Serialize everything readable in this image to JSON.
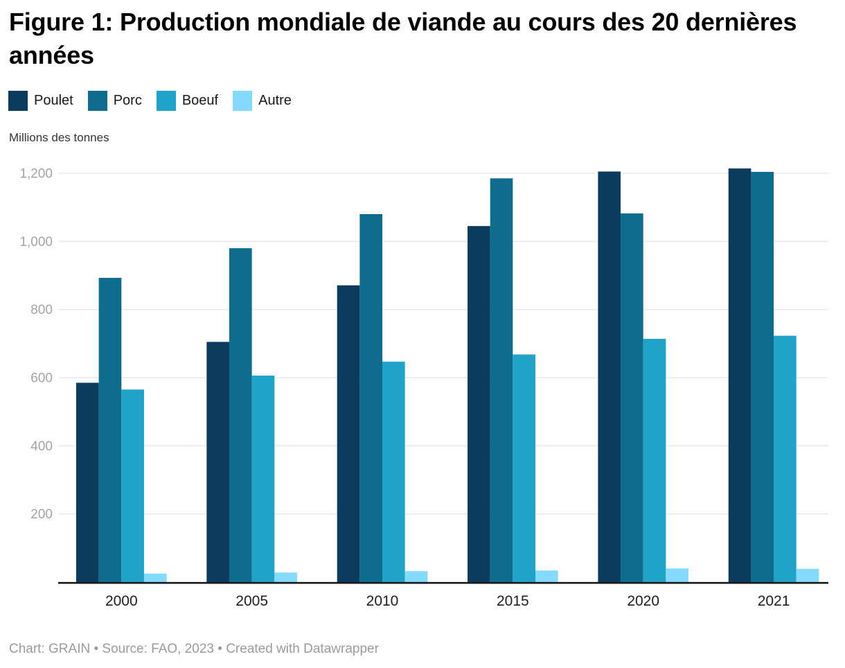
{
  "header": {
    "title": "Figure 1: Production mondiale de viande au cours des 20 dernières années"
  },
  "axis_unit_label": "Millions des tonnes",
  "footer": {
    "text": "Chart: GRAIN • Source: FAO, 2023 • Created with Datawrapper"
  },
  "chart_data": {
    "type": "bar",
    "title": "Figure 1: Production mondiale de viande au cours des 20 dernières années",
    "ylabel": "Millions des tonnes",
    "xlabel": "",
    "categories": [
      "2000",
      "2005",
      "2010",
      "2015",
      "2020",
      "2021"
    ],
    "series": [
      {
        "name": "Poulet",
        "color": "#0b3c5d",
        "values": [
          585,
          705,
          871,
          1045,
          1205,
          1214
        ]
      },
      {
        "name": "Porc",
        "color": "#0e6d8e",
        "values": [
          893,
          980,
          1080,
          1185,
          1082,
          1204
        ]
      },
      {
        "name": "Boeuf",
        "color": "#1fa3c9",
        "values": [
          565,
          606,
          647,
          668,
          714,
          723
        ]
      },
      {
        "name": "Autre",
        "color": "#83dafb",
        "values": [
          25,
          28,
          32,
          34,
          40,
          39
        ]
      }
    ],
    "ylim": [
      0,
      1200
    ],
    "yticks": [
      {
        "value": 200,
        "label": "200"
      },
      {
        "value": 400,
        "label": "400"
      },
      {
        "value": 600,
        "label": "600"
      },
      {
        "value": 800,
        "label": "800"
      },
      {
        "value": 1000,
        "label": "1,000"
      },
      {
        "value": 1200,
        "label": "1,200"
      }
    ],
    "grid": true,
    "legend_position": "top",
    "colors": {
      "gridline": "#e8e8e8",
      "axis_line": "#191919",
      "y_tick_label": "#a2a2a2",
      "x_tick_label": "#1d1d1d"
    }
  }
}
